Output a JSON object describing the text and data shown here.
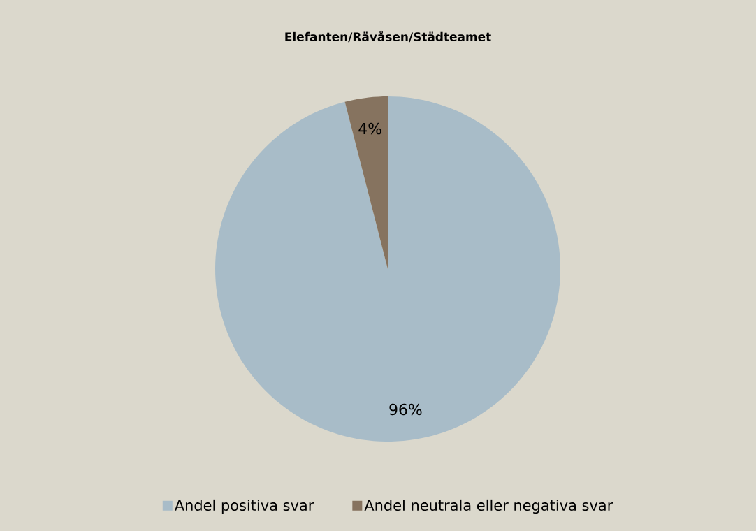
{
  "chart_data": {
    "type": "pie",
    "title": "Elefanten/Rävåsen/Städteamet",
    "categories": [
      "Andel positiva svar",
      "Andel neutrala eller negativa svar"
    ],
    "values": [
      96,
      4
    ],
    "colors": [
      "#a8bcc8",
      "#86735f"
    ],
    "value_labels": [
      "96%",
      "4%"
    ],
    "legend": "bottom"
  }
}
